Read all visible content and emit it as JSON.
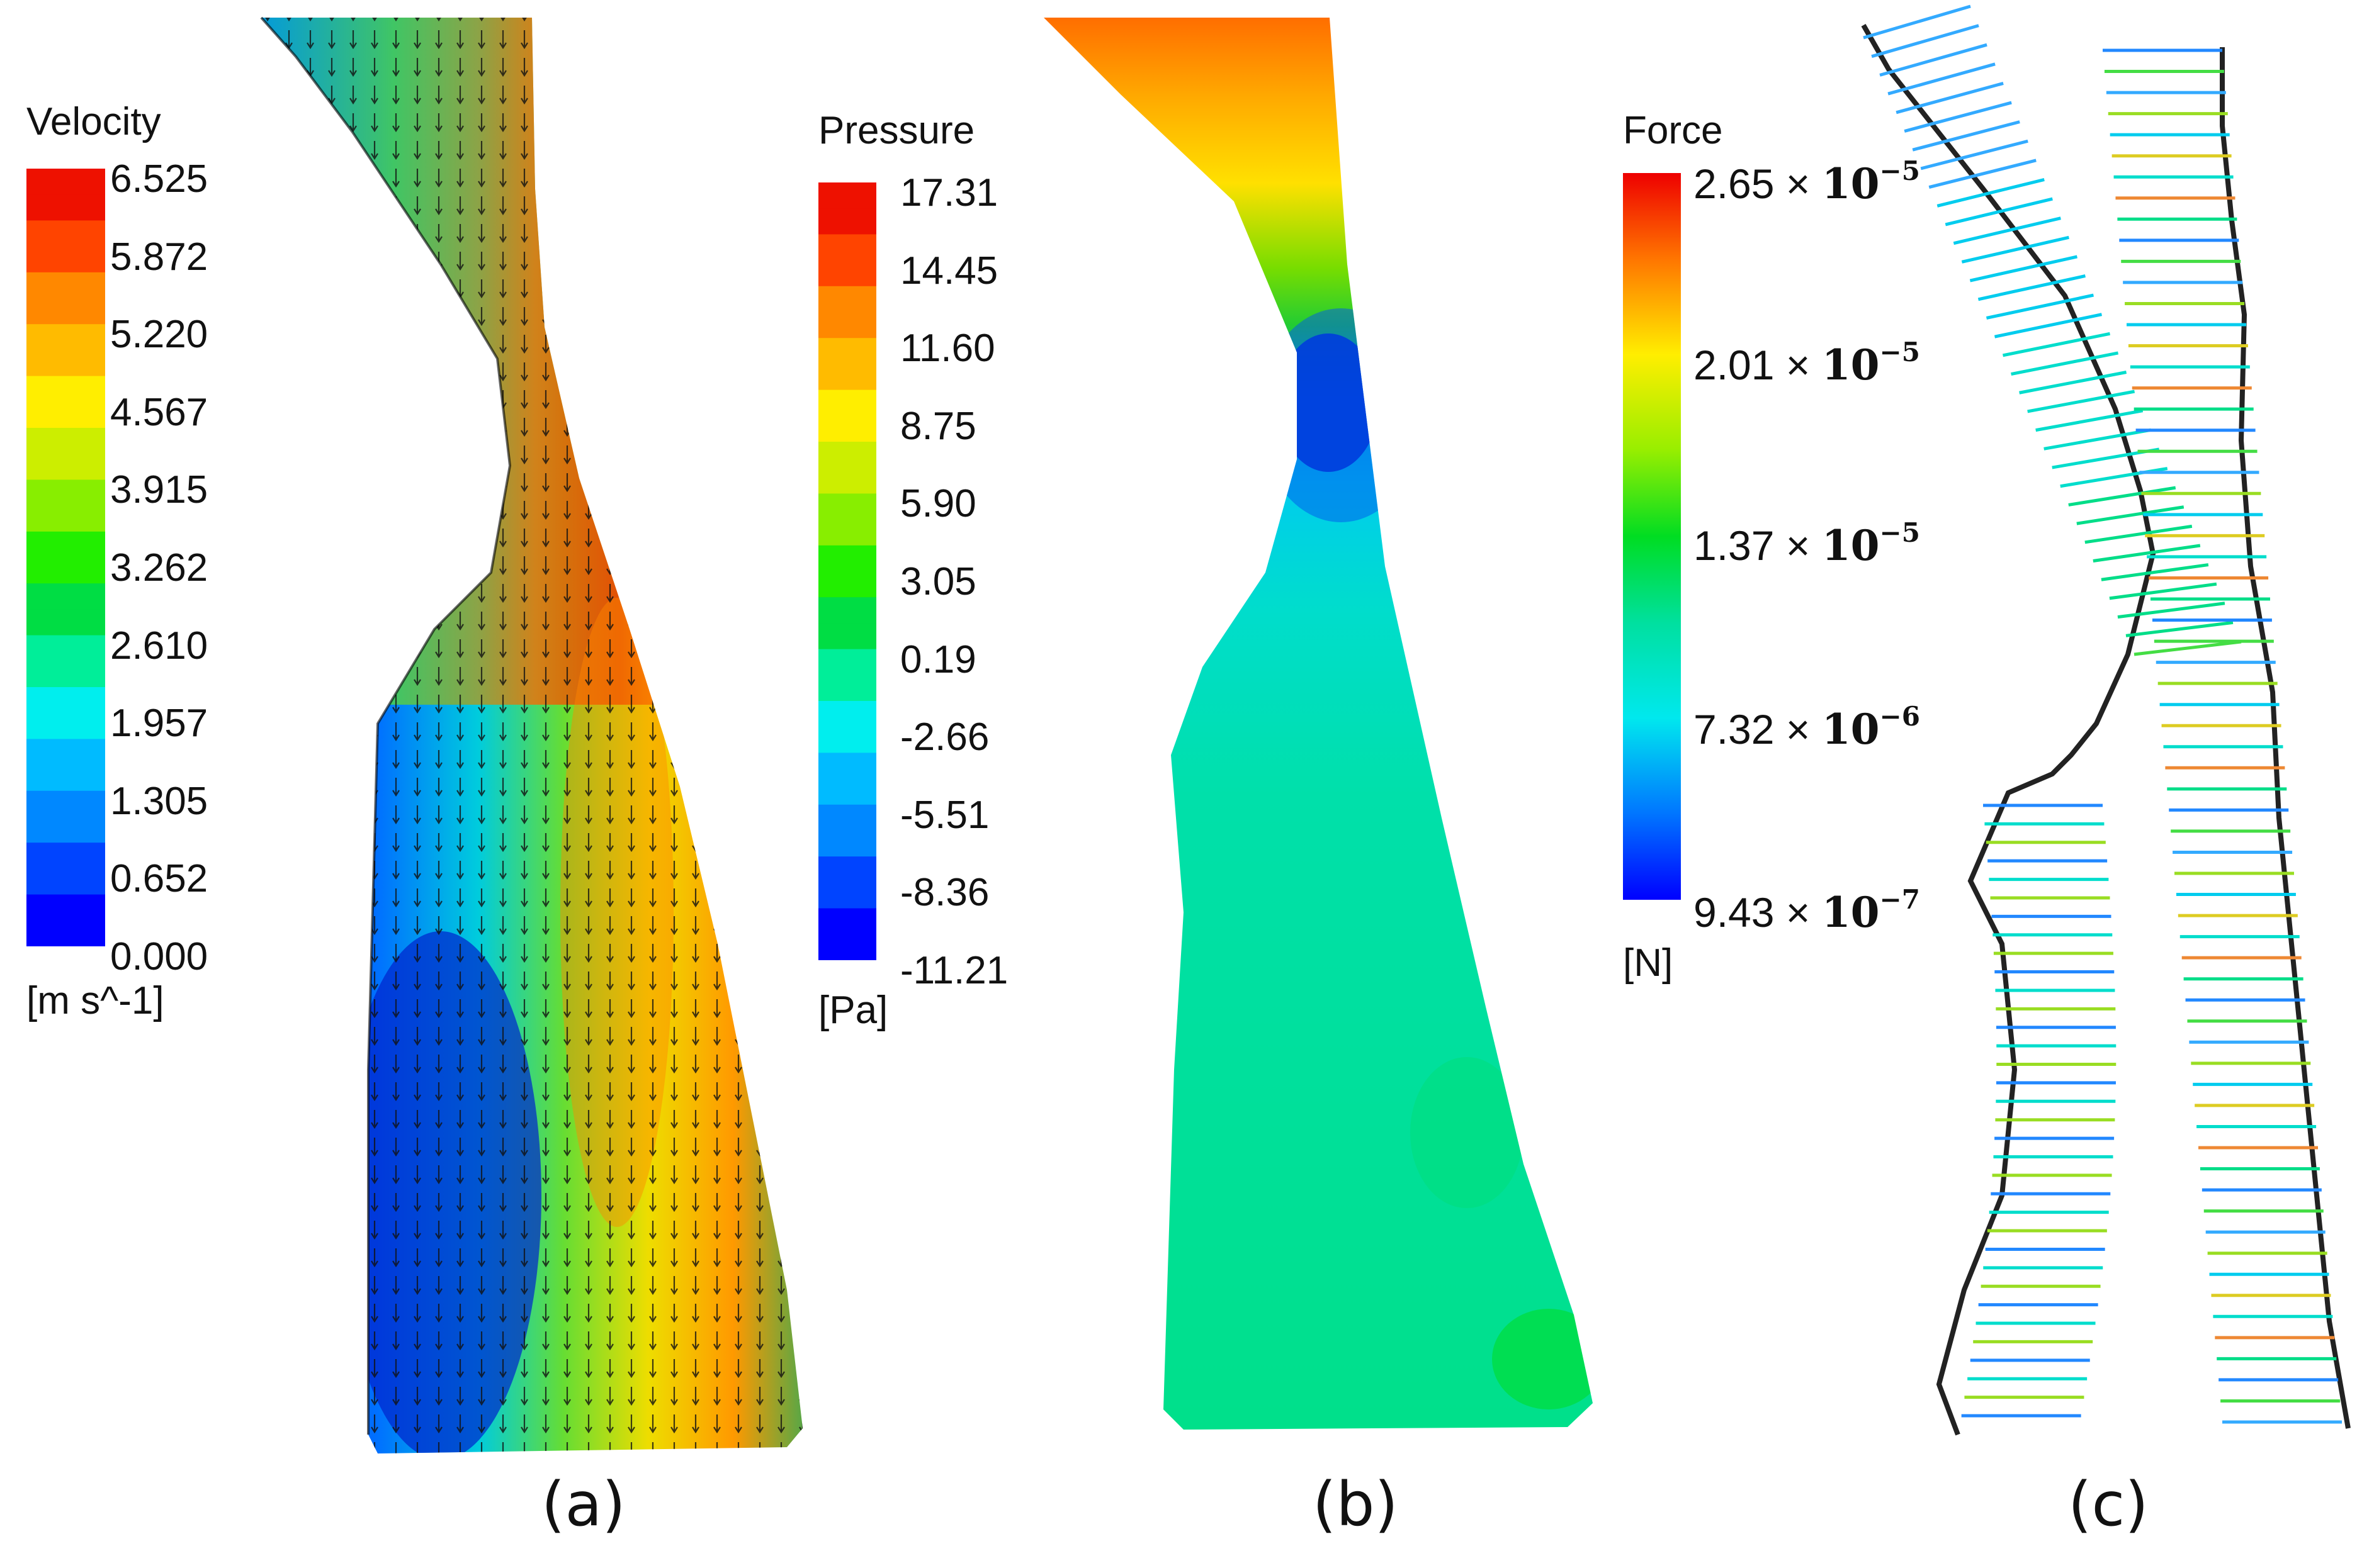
{
  "colors": {
    "colormap": [
      "#0000ff",
      "#0044ff",
      "#0088ff",
      "#00bbff",
      "#00eeee",
      "#00ee99",
      "#00dd44",
      "#22ee00",
      "#88ee00",
      "#ccee00",
      "#ffee00",
      "#ffbb00",
      "#ff8800",
      "#ff4400",
      "#ee1100"
    ]
  },
  "velocity": {
    "title": "Velocity",
    "unit": "[m s^-1]",
    "ticks": [
      "6.525",
      "5.872",
      "5.220",
      "4.567",
      "3.915",
      "3.262",
      "2.610",
      "1.957",
      "1.305",
      "0.652",
      "0.000"
    ]
  },
  "pressure": {
    "title": "Pressure",
    "unit": "[Pa]",
    "ticks": [
      "17.31",
      "14.45",
      "11.60",
      "8.75",
      "5.90",
      "3.05",
      "0.19",
      "-2.66",
      "-5.51",
      "-8.36",
      "-11.21"
    ]
  },
  "force": {
    "title": "Force",
    "unit": "[N]",
    "ticks": [
      {
        "mantissa": "2.65",
        "times": "×",
        "base": "10",
        "exp": "−5"
      },
      {
        "mantissa": "2.01",
        "times": "×",
        "base": "10",
        "exp": "−5"
      },
      {
        "mantissa": "1.37",
        "times": "×",
        "base": "10",
        "exp": "−5"
      },
      {
        "mantissa": "7.32",
        "times": "×",
        "base": "10",
        "exp": "−6"
      },
      {
        "mantissa": "9.43",
        "times": "×",
        "base": "10",
        "exp": "−7"
      }
    ]
  },
  "panels": {
    "a": "(a)",
    "b": "(b)",
    "c": "(c)"
  }
}
